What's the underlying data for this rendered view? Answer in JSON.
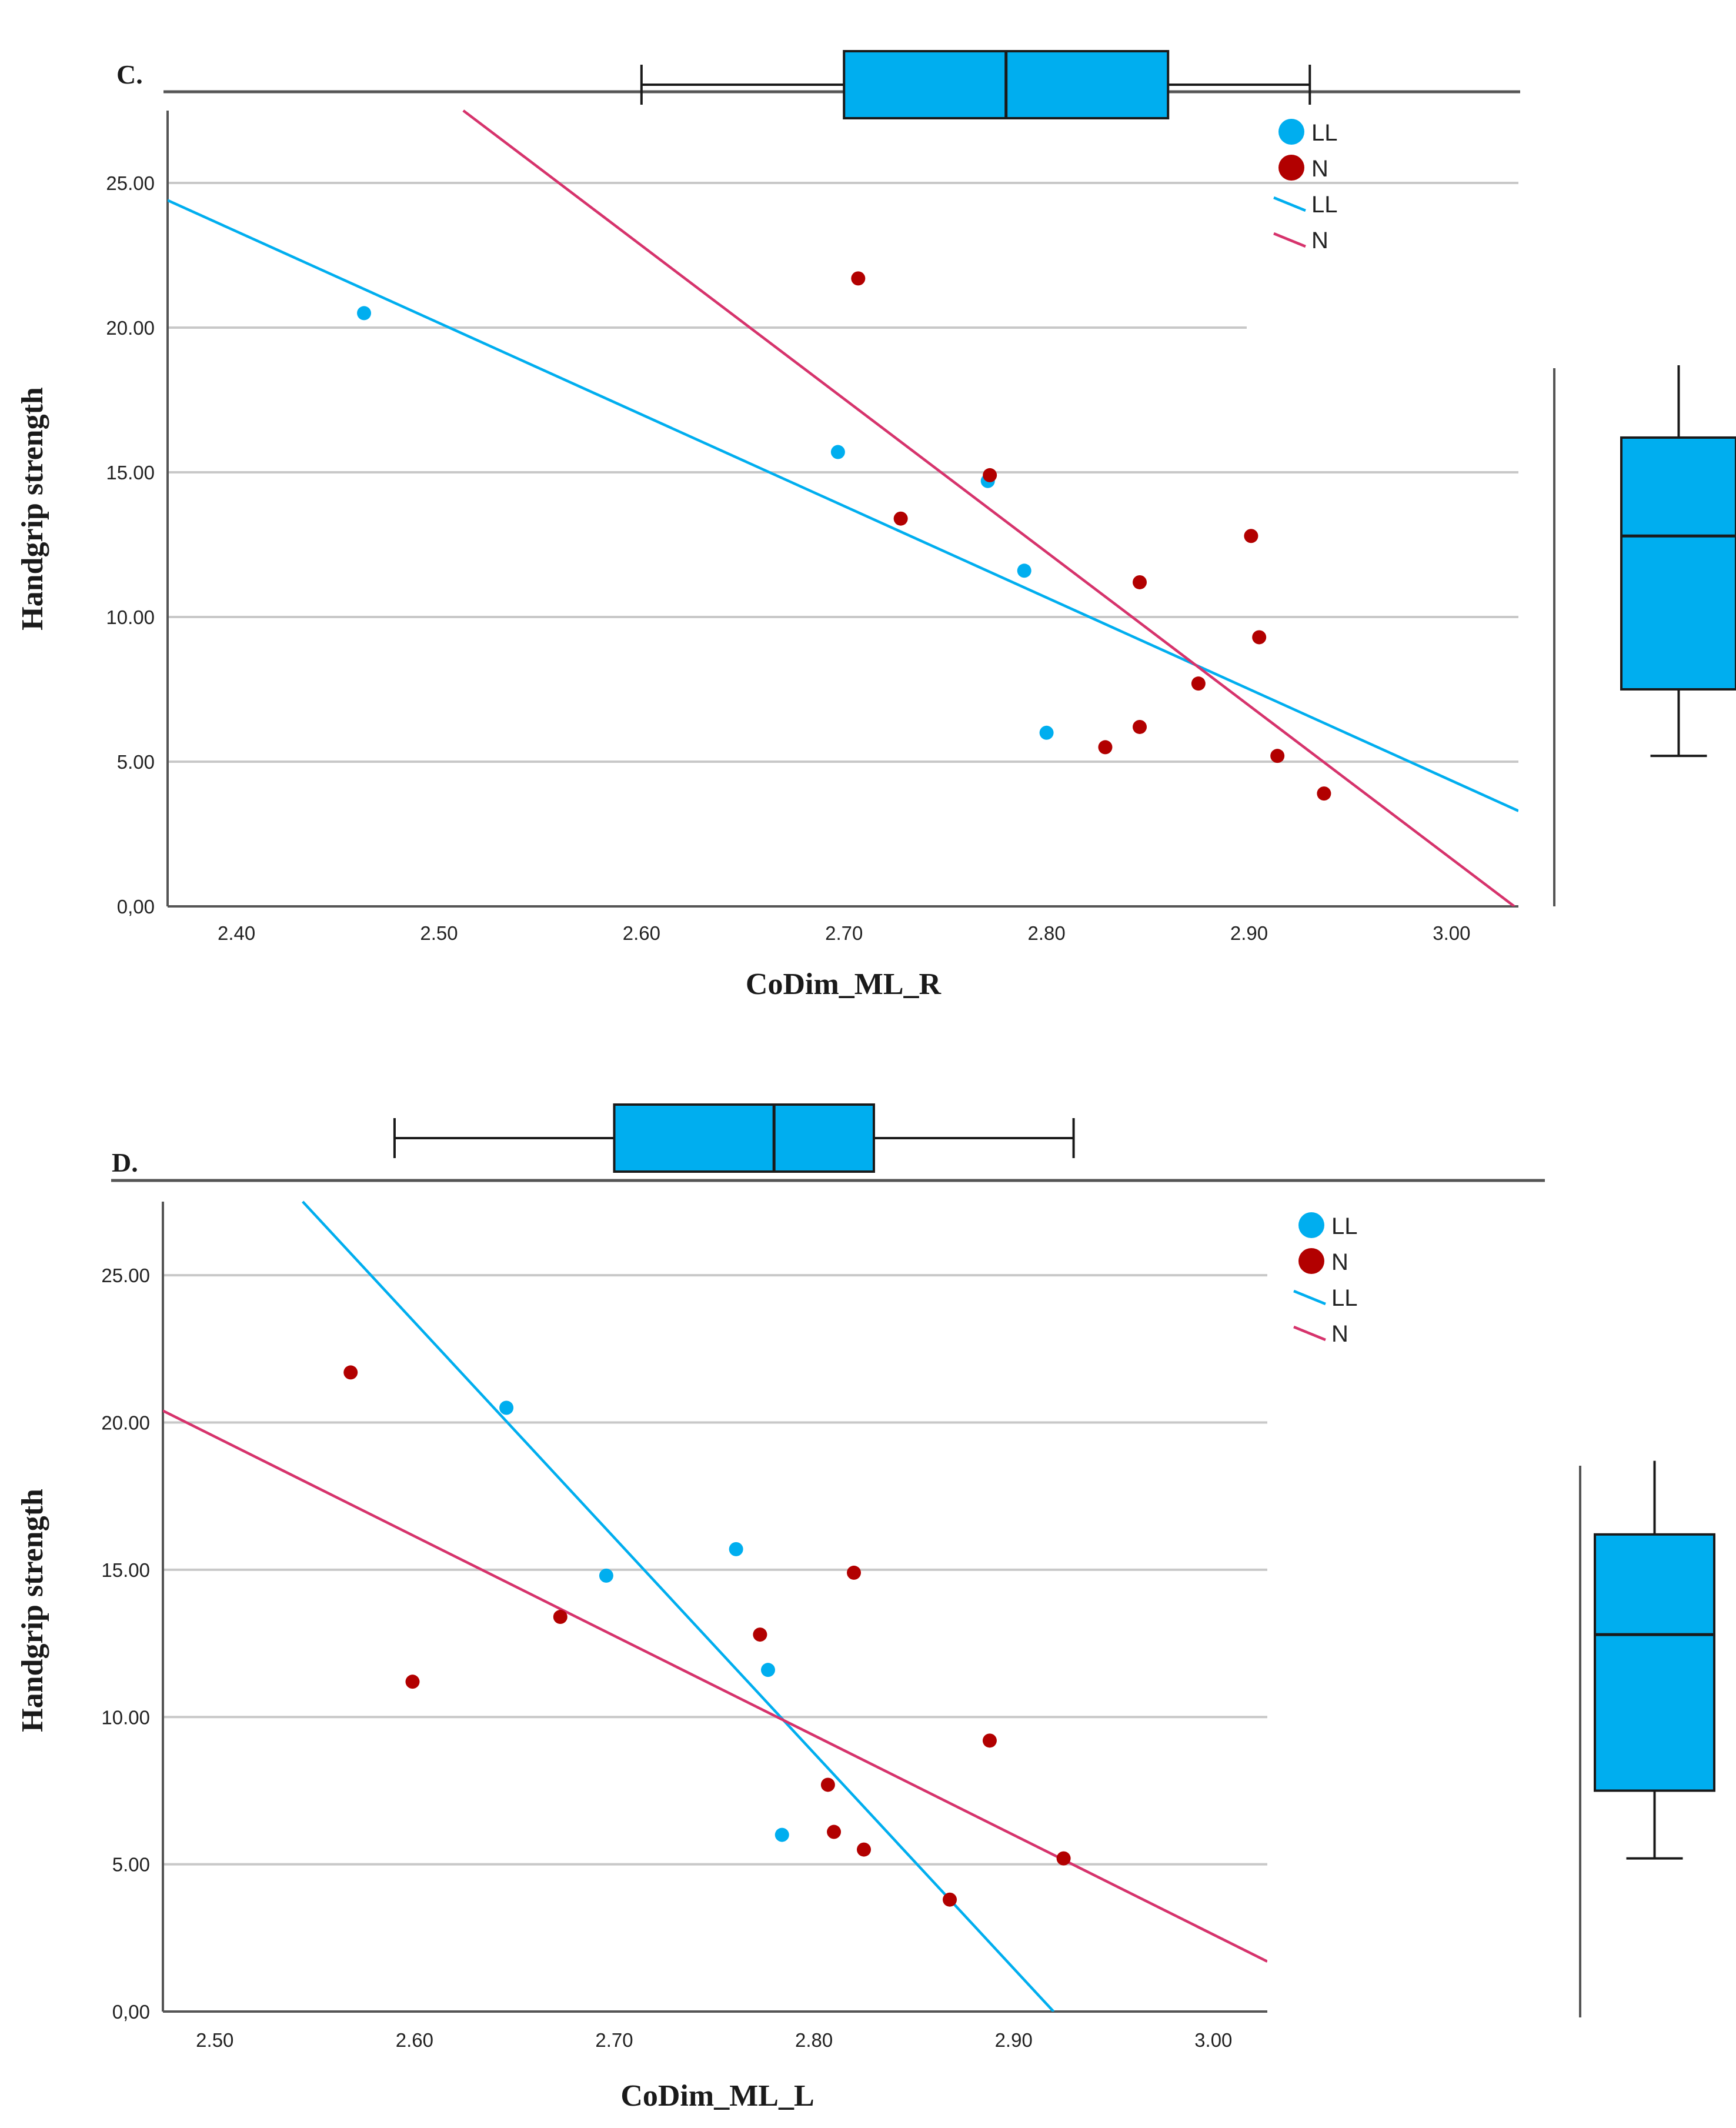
{
  "colors": {
    "LL": "#00AEEF",
    "N": "#B20000",
    "N_line": "#D6336C",
    "grid": "#C8C8C8",
    "axis": "#555555",
    "box_fill": "#00AEEF",
    "box_stroke": "#1A1A1A"
  },
  "chart_data": [
    {
      "type": "scatter",
      "panel_label": "C.",
      "xlabel": "CoDim_ML_R",
      "ylabel": "Handgrip strength",
      "xlim": [
        2.366,
        3.033
      ],
      "ylim": [
        0,
        27.5
      ],
      "x_ticks": [
        "2.40",
        "2.50",
        "2.60",
        "2.70",
        "2.80",
        "2.90",
        "3.00"
      ],
      "x_tick_values": [
        2.4,
        2.5,
        2.6,
        2.7,
        2.8,
        2.9,
        3.0
      ],
      "y_ticks": [
        "0,00",
        "5.00",
        "10.00",
        "15.00",
        "20.00",
        "25.00"
      ],
      "y_tick_values": [
        0,
        5,
        10,
        15,
        20,
        25
      ],
      "legend": [
        {
          "label": "LL",
          "kind": "point",
          "series": "LL"
        },
        {
          "label": "N",
          "kind": "point",
          "series": "N"
        },
        {
          "label": "LL",
          "kind": "line",
          "series": "LL"
        },
        {
          "label": "N",
          "kind": "line",
          "series": "N"
        }
      ],
      "series": [
        {
          "name": "LL",
          "points": [
            [
              2.463,
              20.5
            ],
            [
              2.697,
              15.7
            ],
            [
              2.771,
              14.7
            ],
            [
              2.789,
              11.6
            ],
            [
              2.8,
              6.0
            ]
          ]
        },
        {
          "name": "N",
          "points": [
            [
              2.707,
              21.7
            ],
            [
              2.728,
              13.4
            ],
            [
              2.772,
              14.9
            ],
            [
              2.846,
              11.2
            ],
            [
              2.901,
              12.8
            ],
            [
              2.905,
              9.3
            ],
            [
              2.875,
              7.7
            ],
            [
              2.846,
              6.2
            ],
            [
              2.829,
              5.5
            ],
            [
              2.914,
              5.2
            ],
            [
              2.937,
              3.9
            ]
          ]
        }
      ],
      "fit_lines": [
        {
          "series": "LL",
          "x": [
            2.366,
            3.033
          ],
          "y": [
            24.4,
            3.3
          ]
        },
        {
          "series": "N",
          "x": [
            2.512,
            3.031
          ],
          "y": [
            27.5,
            0
          ]
        }
      ],
      "x_boxplot": {
        "min": 2.6,
        "q1": 2.7,
        "median": 2.78,
        "q3": 2.86,
        "max": 2.93
      },
      "y_boxplot": {
        "min": 5.2,
        "q1": 7.5,
        "median": 12.8,
        "q3": 16.2,
        "max": 18.7
      }
    },
    {
      "type": "scatter",
      "panel_label": "D.",
      "xlabel": "CoDim_ML_L",
      "ylabel": "Handgrip strength",
      "xlim": [
        2.474,
        3.027
      ],
      "ylim": [
        0,
        27.5
      ],
      "x_ticks": [
        "2.50",
        "2.60",
        "2.70",
        "2.80",
        "2.90",
        "3.00"
      ],
      "x_tick_values": [
        2.5,
        2.6,
        2.7,
        2.8,
        2.9,
        3.0
      ],
      "y_ticks": [
        "0,00",
        "5.00",
        "10.00",
        "15.00",
        "20.00",
        "25.00"
      ],
      "y_tick_values": [
        0,
        5,
        10,
        15,
        20,
        25
      ],
      "legend": [
        {
          "label": "LL",
          "kind": "point",
          "series": "LL"
        },
        {
          "label": "N",
          "kind": "point",
          "series": "N"
        },
        {
          "label": "LL",
          "kind": "line",
          "series": "LL"
        },
        {
          "label": "N",
          "kind": "line",
          "series": "N"
        }
      ],
      "series": [
        {
          "name": "LL",
          "points": [
            [
              2.646,
              20.5
            ],
            [
              2.696,
              14.8
            ],
            [
              2.761,
              15.7
            ],
            [
              2.777,
              11.6
            ],
            [
              2.784,
              6.0
            ]
          ]
        },
        {
          "name": "N",
          "points": [
            [
              2.568,
              21.7
            ],
            [
              2.599,
              11.2
            ],
            [
              2.673,
              13.4
            ],
            [
              2.773,
              12.8
            ],
            [
              2.82,
              14.9
            ],
            [
              2.888,
              9.2
            ],
            [
              2.807,
              7.7
            ],
            [
              2.81,
              6.1
            ],
            [
              2.825,
              5.5
            ],
            [
              2.925,
              5.2
            ],
            [
              2.868,
              3.8
            ]
          ]
        }
      ],
      "fit_lines": [
        {
          "series": "LL",
          "x": [
            2.544,
            2.92
          ],
          "y": [
            27.5,
            0
          ]
        },
        {
          "series": "N",
          "x": [
            2.474,
            3.027
          ],
          "y": [
            20.4,
            1.7
          ]
        }
      ],
      "x_boxplot": {
        "min": 2.59,
        "q1": 2.7,
        "median": 2.78,
        "q3": 2.83,
        "max": 2.93
      },
      "y_boxplot": {
        "min": 5.2,
        "q1": 7.5,
        "median": 12.8,
        "q3": 16.2,
        "max": 18.7
      }
    }
  ]
}
